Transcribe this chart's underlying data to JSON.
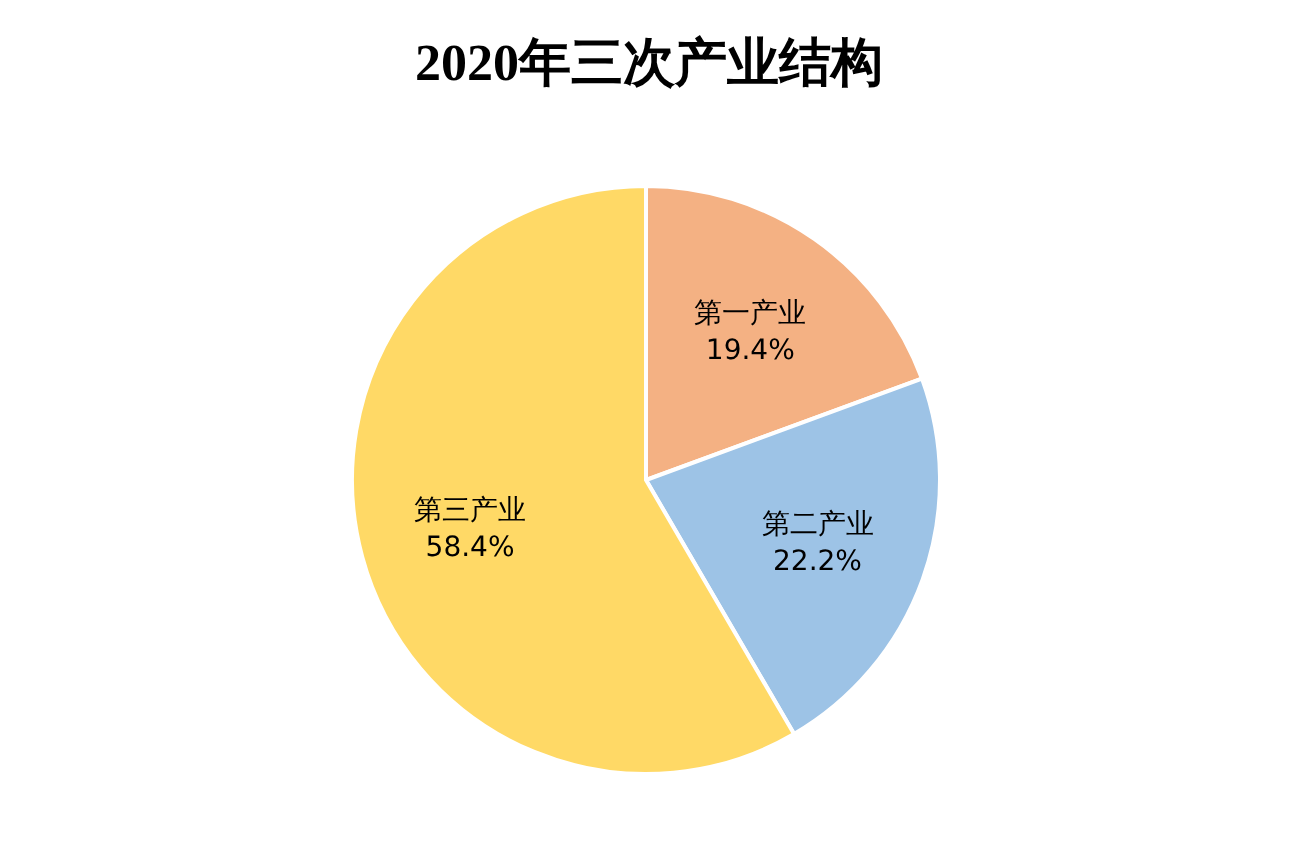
{
  "chart_data": {
    "type": "pie",
    "title": "2020年三次产业结构",
    "categories": [
      "第一产业",
      "第二产业",
      "第三产业"
    ],
    "values": [
      19.4,
      22.2,
      58.4
    ],
    "value_labels": [
      "19.4%",
      "22.2%",
      "58.4%"
    ],
    "colors": [
      "#f4b183",
      "#9dc3e6",
      "#ffd966"
    ],
    "legend": false
  }
}
